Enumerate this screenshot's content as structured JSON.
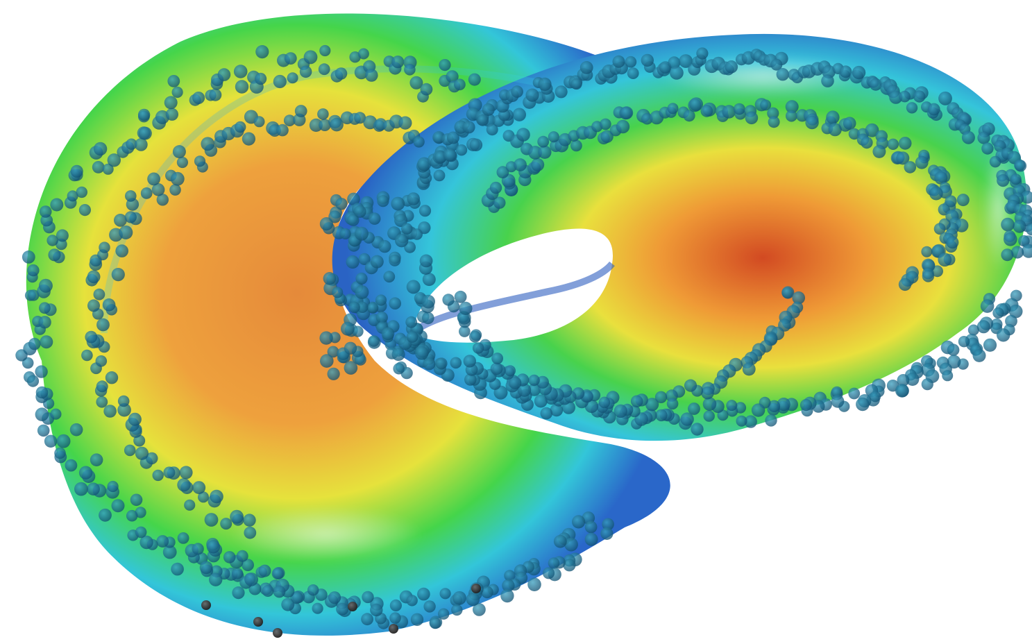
{
  "scene": {
    "subject": "genus-one-surface-with-sample-points",
    "colormap": [
      "#1f3fbf",
      "#2a6fd6",
      "#31c9e6",
      "#3fd84a",
      "#e8ea3a",
      "#f2a43a",
      "#d23a1e"
    ],
    "background": "#ffffff",
    "point_color": "#1f6c8c",
    "point_color_dark": "#3a3a3a"
  }
}
